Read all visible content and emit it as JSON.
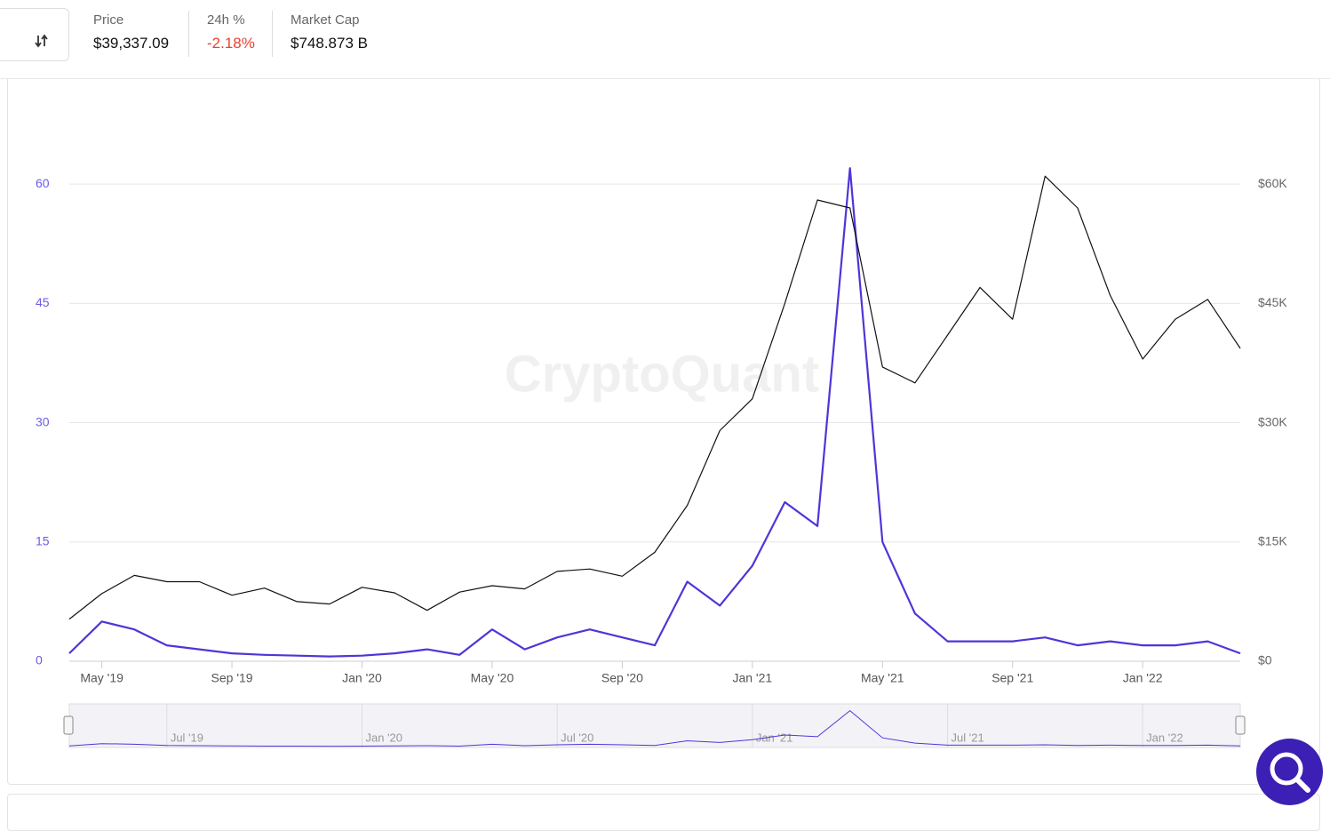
{
  "header": {
    "stats": [
      {
        "label": "Price",
        "value": "$39,337.09"
      },
      {
        "label": "24h %",
        "value": "-2.18%"
      },
      {
        "label": "Market Cap",
        "value": "$748.873 B"
      }
    ]
  },
  "chart_data": {
    "type": "line",
    "watermark": "CryptoQuant",
    "x": [
      "2019-04",
      "2019-05",
      "2019-06",
      "2019-07",
      "2019-08",
      "2019-09",
      "2019-10",
      "2019-11",
      "2019-12",
      "2020-01",
      "2020-02",
      "2020-03",
      "2020-04",
      "2020-05",
      "2020-06",
      "2020-07",
      "2020-08",
      "2020-09",
      "2020-10",
      "2020-11",
      "2020-12",
      "2021-01",
      "2021-02",
      "2021-03",
      "2021-04",
      "2021-05",
      "2021-06",
      "2021-07",
      "2021-08",
      "2021-09",
      "2021-10",
      "2021-11",
      "2021-12",
      "2022-01",
      "2022-02",
      "2022-03",
      "2022-04"
    ],
    "xlim": [
      "2019-04",
      "2022-04"
    ],
    "xticks": [
      {
        "value": "2019-05",
        "label": "May '19"
      },
      {
        "value": "2019-09",
        "label": "Sep '19"
      },
      {
        "value": "2020-01",
        "label": "Jan '20"
      },
      {
        "value": "2020-05",
        "label": "May '20"
      },
      {
        "value": "2020-09",
        "label": "Sep '20"
      },
      {
        "value": "2021-01",
        "label": "Jan '21"
      },
      {
        "value": "2021-05",
        "label": "May '21"
      },
      {
        "value": "2021-09",
        "label": "Sep '21"
      },
      {
        "value": "2022-01",
        "label": "Jan '22"
      }
    ],
    "navigator_ticks": [
      {
        "value": "2019-07",
        "label": "Jul '19"
      },
      {
        "value": "2020-01",
        "label": "Jan '20"
      },
      {
        "value": "2020-07",
        "label": "Jul '20"
      },
      {
        "value": "2021-01",
        "label": "Jan '21"
      },
      {
        "value": "2021-07",
        "label": "Jul '21"
      },
      {
        "value": "2022-01",
        "label": "Jan '22"
      }
    ],
    "ylim": [
      0,
      67.5
    ],
    "yticks": [
      0,
      15,
      30,
      45,
      60
    ],
    "y2lim": [
      0,
      67500
    ],
    "y2ticks": [
      {
        "value": 0,
        "label": "$0"
      },
      {
        "value": 15000,
        "label": "$15K"
      },
      {
        "value": 30000,
        "label": "$30K"
      },
      {
        "value": 45000,
        "label": "$45K"
      },
      {
        "value": 60000,
        "label": "$60K"
      }
    ],
    "grid": true,
    "series": [
      {
        "color": "#4f35d8",
        "values": [
          1,
          5,
          4,
          2,
          1.5,
          1,
          0.8,
          0.7,
          0.6,
          0.7,
          1,
          1.5,
          0.8,
          4,
          1.5,
          3,
          4,
          3,
          2,
          10,
          7,
          12,
          20,
          17,
          62,
          15,
          6,
          2.5,
          2.5,
          2.5,
          3,
          2,
          2.5,
          2,
          2,
          2.5,
          1
        ]
      },
      {
        "color": "#111111",
        "axis": "y2",
        "values": [
          5300,
          8500,
          10800,
          10000,
          10000,
          8300,
          9200,
          7500,
          7200,
          9300,
          8600,
          6400,
          8700,
          9500,
          9100,
          11300,
          11600,
          10700,
          13700,
          19600,
          29000,
          33000,
          45000,
          58000,
          57000,
          37000,
          35000,
          41000,
          47000,
          43000,
          61000,
          57000,
          46000,
          38000,
          43000,
          45500,
          39337
        ]
      }
    ]
  }
}
